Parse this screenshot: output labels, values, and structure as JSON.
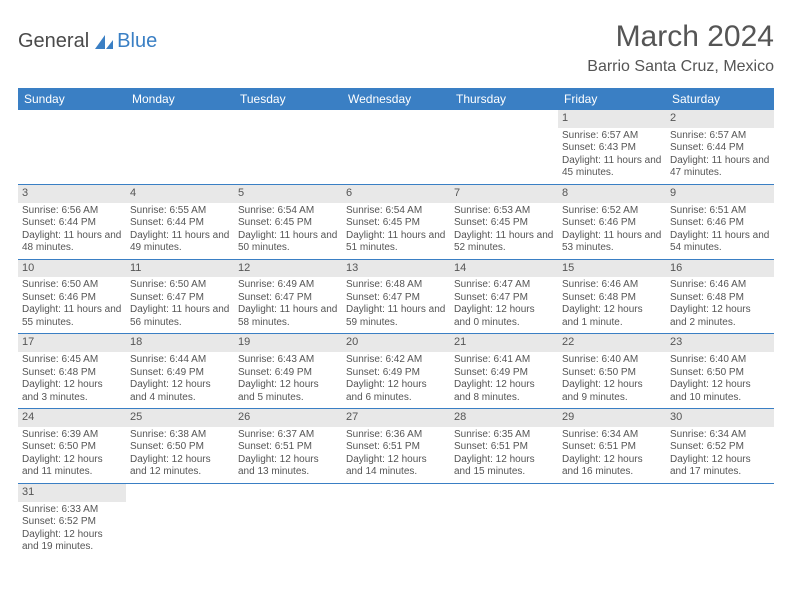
{
  "logo": {
    "part1": "General",
    "part2": "Blue"
  },
  "title": "March 2024",
  "location": "Barrio Santa Cruz, Mexico",
  "colors": {
    "header_bg": "#3a7fc4",
    "header_text": "#ffffff",
    "daynum_bg": "#e8e8e8",
    "text": "#555555",
    "rule": "#3a7fc4"
  },
  "weekdays": [
    "Sunday",
    "Monday",
    "Tuesday",
    "Wednesday",
    "Thursday",
    "Friday",
    "Saturday"
  ],
  "weeks": [
    [
      {
        "n": "",
        "sr": "",
        "ss": "",
        "dl": ""
      },
      {
        "n": "",
        "sr": "",
        "ss": "",
        "dl": ""
      },
      {
        "n": "",
        "sr": "",
        "ss": "",
        "dl": ""
      },
      {
        "n": "",
        "sr": "",
        "ss": "",
        "dl": ""
      },
      {
        "n": "",
        "sr": "",
        "ss": "",
        "dl": ""
      },
      {
        "n": "1",
        "sr": "Sunrise: 6:57 AM",
        "ss": "Sunset: 6:43 PM",
        "dl": "Daylight: 11 hours and 45 minutes."
      },
      {
        "n": "2",
        "sr": "Sunrise: 6:57 AM",
        "ss": "Sunset: 6:44 PM",
        "dl": "Daylight: 11 hours and 47 minutes."
      }
    ],
    [
      {
        "n": "3",
        "sr": "Sunrise: 6:56 AM",
        "ss": "Sunset: 6:44 PM",
        "dl": "Daylight: 11 hours and 48 minutes."
      },
      {
        "n": "4",
        "sr": "Sunrise: 6:55 AM",
        "ss": "Sunset: 6:44 PM",
        "dl": "Daylight: 11 hours and 49 minutes."
      },
      {
        "n": "5",
        "sr": "Sunrise: 6:54 AM",
        "ss": "Sunset: 6:45 PM",
        "dl": "Daylight: 11 hours and 50 minutes."
      },
      {
        "n": "6",
        "sr": "Sunrise: 6:54 AM",
        "ss": "Sunset: 6:45 PM",
        "dl": "Daylight: 11 hours and 51 minutes."
      },
      {
        "n": "7",
        "sr": "Sunrise: 6:53 AM",
        "ss": "Sunset: 6:45 PM",
        "dl": "Daylight: 11 hours and 52 minutes."
      },
      {
        "n": "8",
        "sr": "Sunrise: 6:52 AM",
        "ss": "Sunset: 6:46 PM",
        "dl": "Daylight: 11 hours and 53 minutes."
      },
      {
        "n": "9",
        "sr": "Sunrise: 6:51 AM",
        "ss": "Sunset: 6:46 PM",
        "dl": "Daylight: 11 hours and 54 minutes."
      }
    ],
    [
      {
        "n": "10",
        "sr": "Sunrise: 6:50 AM",
        "ss": "Sunset: 6:46 PM",
        "dl": "Daylight: 11 hours and 55 minutes."
      },
      {
        "n": "11",
        "sr": "Sunrise: 6:50 AM",
        "ss": "Sunset: 6:47 PM",
        "dl": "Daylight: 11 hours and 56 minutes."
      },
      {
        "n": "12",
        "sr": "Sunrise: 6:49 AM",
        "ss": "Sunset: 6:47 PM",
        "dl": "Daylight: 11 hours and 58 minutes."
      },
      {
        "n": "13",
        "sr": "Sunrise: 6:48 AM",
        "ss": "Sunset: 6:47 PM",
        "dl": "Daylight: 11 hours and 59 minutes."
      },
      {
        "n": "14",
        "sr": "Sunrise: 6:47 AM",
        "ss": "Sunset: 6:47 PM",
        "dl": "Daylight: 12 hours and 0 minutes."
      },
      {
        "n": "15",
        "sr": "Sunrise: 6:46 AM",
        "ss": "Sunset: 6:48 PM",
        "dl": "Daylight: 12 hours and 1 minute."
      },
      {
        "n": "16",
        "sr": "Sunrise: 6:46 AM",
        "ss": "Sunset: 6:48 PM",
        "dl": "Daylight: 12 hours and 2 minutes."
      }
    ],
    [
      {
        "n": "17",
        "sr": "Sunrise: 6:45 AM",
        "ss": "Sunset: 6:48 PM",
        "dl": "Daylight: 12 hours and 3 minutes."
      },
      {
        "n": "18",
        "sr": "Sunrise: 6:44 AM",
        "ss": "Sunset: 6:49 PM",
        "dl": "Daylight: 12 hours and 4 minutes."
      },
      {
        "n": "19",
        "sr": "Sunrise: 6:43 AM",
        "ss": "Sunset: 6:49 PM",
        "dl": "Daylight: 12 hours and 5 minutes."
      },
      {
        "n": "20",
        "sr": "Sunrise: 6:42 AM",
        "ss": "Sunset: 6:49 PM",
        "dl": "Daylight: 12 hours and 6 minutes."
      },
      {
        "n": "21",
        "sr": "Sunrise: 6:41 AM",
        "ss": "Sunset: 6:49 PM",
        "dl": "Daylight: 12 hours and 8 minutes."
      },
      {
        "n": "22",
        "sr": "Sunrise: 6:40 AM",
        "ss": "Sunset: 6:50 PM",
        "dl": "Daylight: 12 hours and 9 minutes."
      },
      {
        "n": "23",
        "sr": "Sunrise: 6:40 AM",
        "ss": "Sunset: 6:50 PM",
        "dl": "Daylight: 12 hours and 10 minutes."
      }
    ],
    [
      {
        "n": "24",
        "sr": "Sunrise: 6:39 AM",
        "ss": "Sunset: 6:50 PM",
        "dl": "Daylight: 12 hours and 11 minutes."
      },
      {
        "n": "25",
        "sr": "Sunrise: 6:38 AM",
        "ss": "Sunset: 6:50 PM",
        "dl": "Daylight: 12 hours and 12 minutes."
      },
      {
        "n": "26",
        "sr": "Sunrise: 6:37 AM",
        "ss": "Sunset: 6:51 PM",
        "dl": "Daylight: 12 hours and 13 minutes."
      },
      {
        "n": "27",
        "sr": "Sunrise: 6:36 AM",
        "ss": "Sunset: 6:51 PM",
        "dl": "Daylight: 12 hours and 14 minutes."
      },
      {
        "n": "28",
        "sr": "Sunrise: 6:35 AM",
        "ss": "Sunset: 6:51 PM",
        "dl": "Daylight: 12 hours and 15 minutes."
      },
      {
        "n": "29",
        "sr": "Sunrise: 6:34 AM",
        "ss": "Sunset: 6:51 PM",
        "dl": "Daylight: 12 hours and 16 minutes."
      },
      {
        "n": "30",
        "sr": "Sunrise: 6:34 AM",
        "ss": "Sunset: 6:52 PM",
        "dl": "Daylight: 12 hours and 17 minutes."
      }
    ],
    [
      {
        "n": "31",
        "sr": "Sunrise: 6:33 AM",
        "ss": "Sunset: 6:52 PM",
        "dl": "Daylight: 12 hours and 19 minutes."
      },
      {
        "n": "",
        "sr": "",
        "ss": "",
        "dl": ""
      },
      {
        "n": "",
        "sr": "",
        "ss": "",
        "dl": ""
      },
      {
        "n": "",
        "sr": "",
        "ss": "",
        "dl": ""
      },
      {
        "n": "",
        "sr": "",
        "ss": "",
        "dl": ""
      },
      {
        "n": "",
        "sr": "",
        "ss": "",
        "dl": ""
      },
      {
        "n": "",
        "sr": "",
        "ss": "",
        "dl": ""
      }
    ]
  ]
}
